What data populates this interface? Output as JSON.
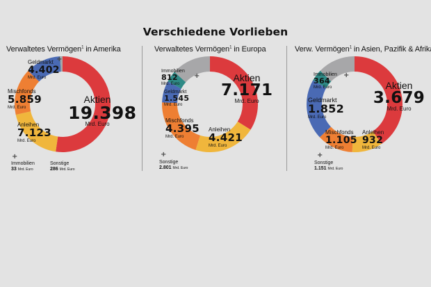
{
  "title": "Verschiedene Vorlieben",
  "colors": {
    "Aktien": "#dc3a3d",
    "Anleihen": "#f0b63c",
    "Mischfonds": "#ee7f33",
    "Geldmarkt": "#4a6ab4",
    "Immobilien": "#2e8a86",
    "Sonstige": "#a7a7a9"
  },
  "unit": "Mrd. Euro",
  "chart_data": [
    {
      "type": "pie",
      "title": "Verwaltetes Vermögen",
      "title_sup": "1",
      "title_suffix": " in Amerika",
      "categories": [
        "Aktien",
        "Anleihen",
        "Mischfonds",
        "Geldmarkt",
        "Immobilien",
        "Sonstige"
      ],
      "values_text": [
        "19.398",
        "7.123",
        "5.859",
        "4.402",
        "33",
        "286"
      ],
      "values": [
        19398,
        7123,
        5859,
        4402,
        33,
        286
      ],
      "unit_labels": [
        "Mrd. Euro",
        "Mrd. Euro",
        "Mrd. Euro",
        "Mrd. Euro",
        "Mrd. Euro",
        "Mrd. Euro"
      ]
    },
    {
      "type": "pie",
      "title": "Verwaltetes Vermögen",
      "title_sup": "1",
      "title_suffix": " in Europa",
      "categories": [
        "Aktien",
        "Anleihen",
        "Mischfonds",
        "Geldmarkt",
        "Immobilien",
        "Sonstige"
      ],
      "values_text": [
        "7.171",
        "4.421",
        "4.395",
        "1.545",
        "812",
        "2.801"
      ],
      "values": [
        7171,
        4421,
        4395,
        1545,
        812,
        2801
      ],
      "unit_labels": [
        "Mrd. Euro",
        "Mrd. Euro",
        "Mrd. Euro",
        "Mrd. Euro",
        "Mrd. Euro",
        "Mrd. Euro"
      ]
    },
    {
      "type": "pie",
      "title": "Verw. Vermögen",
      "title_sup": "1",
      "title_suffix": " in Asien, Pazifik & Afrika",
      "categories": [
        "Aktien",
        "Anleihen",
        "Mischfonds",
        "Geldmarkt",
        "Immobilien",
        "Sonstige"
      ],
      "values_text": [
        "3.679",
        "932",
        "1.105",
        "1.852",
        "364",
        "1.151"
      ],
      "values": [
        3679,
        932,
        1105,
        1852,
        364,
        1151
      ],
      "unit_labels": [
        "Mrd. Euro",
        "Mrd. Euro",
        "Mrd. Euro",
        "Mrd. Euro",
        "Mrd. Euro",
        "Mrd. Euro"
      ]
    }
  ]
}
